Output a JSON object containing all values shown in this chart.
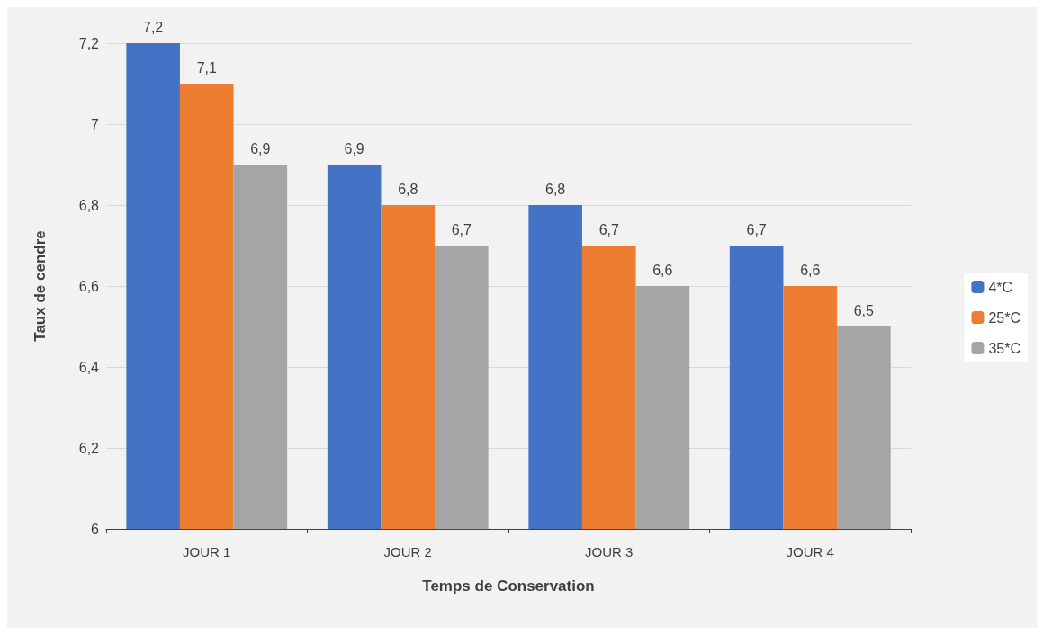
{
  "chart_data": {
    "type": "bar",
    "xlabel": "Temps de Conservation",
    "ylabel": "Taux de cendre",
    "categories": [
      "JOUR 1",
      "JOUR 2",
      "JOUR 3",
      "JOUR 4"
    ],
    "series": [
      {
        "name": "4*C",
        "color": "#4472c4",
        "values": [
          7.2,
          6.9,
          6.8,
          6.7
        ],
        "value_labels": [
          "7,2",
          "6,9",
          "6,8",
          "6,7"
        ]
      },
      {
        "name": "25*C",
        "color": "#ed7d31",
        "values": [
          7.1,
          6.8,
          6.7,
          6.6
        ],
        "value_labels": [
          "7,1",
          "6,8",
          "6,7",
          "6,6"
        ]
      },
      {
        "name": "35*C",
        "color": "#a5a5a5",
        "values": [
          6.9,
          6.7,
          6.6,
          6.5
        ],
        "value_labels": [
          "6,9",
          "6,7",
          "6,6",
          "6,5"
        ]
      }
    ],
    "ylim": [
      6,
      7.2
    ],
    "yticks": [
      6,
      {
        "value": 6.2,
        "label": "6,2"
      },
      {
        "value": 6.4,
        "label": "6,4"
      },
      {
        "value": 6.6,
        "label": "6,6"
      },
      {
        "value": 6.8,
        "label": "6,8"
      },
      7,
      {
        "value": 7.2,
        "label": "7,2"
      }
    ],
    "grid": "y",
    "legend": "right"
  }
}
